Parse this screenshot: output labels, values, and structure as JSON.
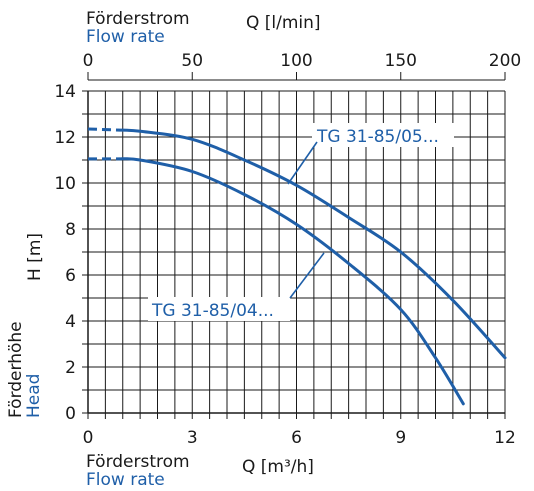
{
  "chart_data": {
    "type": "line",
    "top_axis": {
      "label_de": "Förderstrom",
      "label_en": "Flow rate",
      "unit": "Q [l/min]",
      "ticks": [
        "0",
        "50",
        "100",
        "150",
        "200"
      ],
      "range": [
        0,
        200
      ]
    },
    "bottom_axis": {
      "label_de": "Förderstrom",
      "label_en": "Flow rate",
      "unit": "Q [m³/h]",
      "ticks": [
        "0",
        "3",
        "6",
        "9",
        "12"
      ],
      "range": [
        0,
        12
      ]
    },
    "y_axis": {
      "label_de": "Förderhöhe",
      "label_en": "Head",
      "unit": "H [m]",
      "ticks": [
        "0",
        "2",
        "4",
        "6",
        "8",
        "10",
        "12",
        "14"
      ],
      "range": [
        0,
        14
      ]
    },
    "grid": true,
    "series": [
      {
        "name": "TG 31-85/05...",
        "dashed_start": {
          "x": [
            0,
            0.9
          ],
          "y": [
            12.35,
            12.3
          ]
        },
        "x": [
          0.9,
          1.5,
          3.0,
          4.5,
          6.0,
          7.5,
          9.0,
          10.5,
          12.0
        ],
        "y": [
          12.3,
          12.25,
          11.9,
          11.0,
          9.9,
          8.5,
          7.0,
          4.9,
          2.4
        ]
      },
      {
        "name": "TG 31-85/04...",
        "dashed_start": {
          "x": [
            0,
            0.9
          ],
          "y": [
            11.05,
            11.05
          ]
        },
        "x": [
          0.9,
          1.5,
          3.0,
          4.5,
          6.0,
          7.5,
          9.0,
          10.0,
          10.8
        ],
        "y": [
          11.05,
          11.0,
          10.5,
          9.5,
          8.2,
          6.5,
          4.5,
          2.4,
          0.4
        ]
      }
    ],
    "colors": {
      "curve": "#1f5fa8",
      "label_blue": "#1f5fa8",
      "text": "#1a1a1a"
    }
  }
}
